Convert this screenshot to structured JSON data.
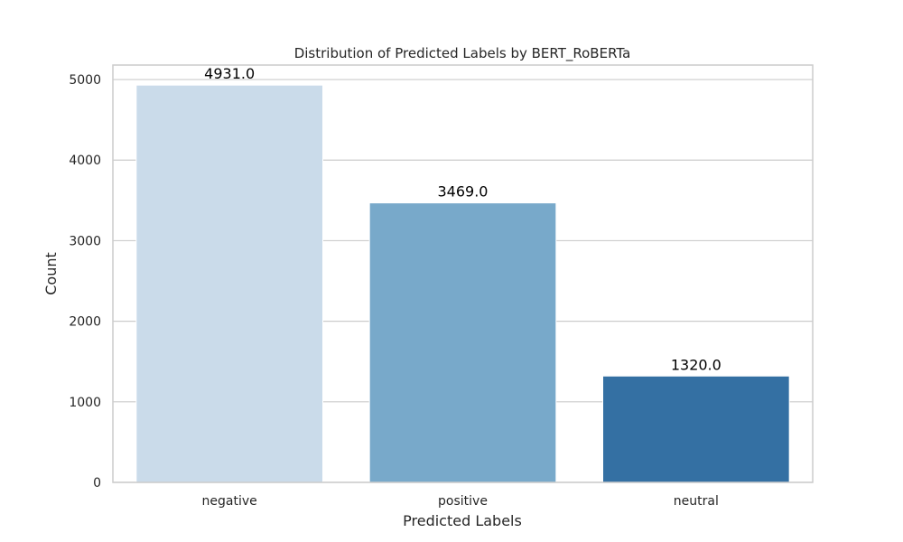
{
  "chart_data": {
    "type": "bar",
    "title": "Distribution of Predicted Labels by BERT_RoBERTa",
    "xlabel": "Predicted Labels",
    "ylabel": "Count",
    "categories": [
      "negative",
      "positive",
      "neutral"
    ],
    "values": [
      4931.0,
      3469.0,
      1320.0
    ],
    "value_labels": [
      "4931.0",
      "3469.0",
      "1320.0"
    ],
    "bar_colors": [
      "#cadbea",
      "#78a9ca",
      "#3470a3"
    ],
    "ylim": [
      0,
      5180
    ],
    "yticks": [
      0,
      1000,
      2000,
      3000,
      4000,
      5000
    ],
    "grid": "horizontal",
    "legend": "none"
  }
}
